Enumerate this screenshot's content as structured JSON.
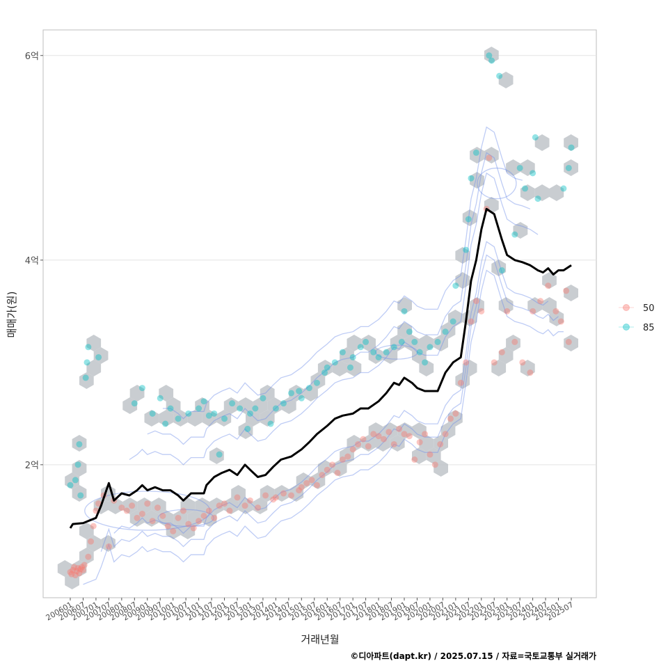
{
  "chart_data": {
    "type": "scatter",
    "title": "",
    "xlabel": "거래년월",
    "ylabel": "매매가(원)",
    "caption": "©디아파트(dapt.kr) / 2025.07.15 / 자료=국토교통부 실거래가",
    "y_unit": "억",
    "ylim": [
      0.7,
      6.25
    ],
    "y_ticks": [
      2,
      4,
      6
    ],
    "y_tick_labels": [
      "2억",
      "4억",
      "6억"
    ],
    "x_ticks": [
      "200601",
      "200607",
      "200701",
      "200707",
      "200801",
      "200807",
      "200901",
      "200907",
      "201001",
      "201007",
      "201101",
      "201107",
      "201201",
      "201207",
      "201301",
      "201307",
      "201401",
      "201407",
      "201501",
      "201507",
      "201601",
      "201607",
      "201701",
      "201707",
      "201801",
      "201807",
      "201901",
      "201907",
      "202001",
      "202007",
      "202101",
      "202107",
      "202201",
      "202207",
      "202301",
      "202307",
      "202401",
      "202407",
      "202501",
      "202507"
    ],
    "grid": true,
    "legend": {
      "position": "right",
      "entries": [
        {
          "name": "50",
          "color": "#F8766D"
        },
        {
          "name": "85",
          "color": "#00BFC4"
        }
      ]
    },
    "layers": [
      "hexbin density (grey)",
      "2D density contours (blue)",
      "points by area group",
      "moving average line (black)"
    ],
    "series": [
      {
        "name": "50",
        "color": "#F8766D",
        "points": [
          [
            2006.0,
            0.95
          ],
          [
            2006.05,
            0.93
          ],
          [
            2006.1,
            0.97
          ],
          [
            2006.15,
            1.0
          ],
          [
            2006.2,
            0.92
          ],
          [
            2006.25,
            0.96
          ],
          [
            2006.3,
            0.99
          ],
          [
            2006.35,
            0.94
          ],
          [
            2006.4,
            0.98
          ],
          [
            2006.45,
            1.0
          ],
          [
            2006.5,
            0.97
          ],
          [
            2006.55,
            1.02
          ],
          [
            2006.7,
            1.1
          ],
          [
            2006.8,
            1.25
          ],
          [
            2006.9,
            1.4
          ],
          [
            2007.0,
            1.55
          ],
          [
            2007.1,
            1.62
          ],
          [
            2007.3,
            1.7
          ],
          [
            2007.5,
            1.2
          ],
          [
            2007.7,
            1.65
          ],
          [
            2008.0,
            1.58
          ],
          [
            2008.2,
            1.55
          ],
          [
            2008.4,
            1.6
          ],
          [
            2008.6,
            1.48
          ],
          [
            2008.8,
            1.52
          ],
          [
            2009.0,
            1.62
          ],
          [
            2009.2,
            1.45
          ],
          [
            2009.4,
            1.58
          ],
          [
            2009.6,
            1.5
          ],
          [
            2009.8,
            1.4
          ],
          [
            2010.0,
            1.35
          ],
          [
            2010.2,
            1.48
          ],
          [
            2010.4,
            1.55
          ],
          [
            2010.6,
            1.42
          ],
          [
            2010.8,
            1.38
          ],
          [
            2011.0,
            1.45
          ],
          [
            2011.2,
            1.5
          ],
          [
            2011.4,
            1.55
          ],
          [
            2011.6,
            1.48
          ],
          [
            2011.8,
            1.6
          ],
          [
            2012.0,
            1.62
          ],
          [
            2012.2,
            1.55
          ],
          [
            2012.5,
            1.68
          ],
          [
            2012.8,
            1.6
          ],
          [
            2013.0,
            1.65
          ],
          [
            2013.3,
            1.58
          ],
          [
            2013.6,
            1.7
          ],
          [
            2013.9,
            1.66
          ],
          [
            2014.0,
            1.68
          ],
          [
            2014.3,
            1.72
          ],
          [
            2014.6,
            1.7
          ],
          [
            2014.9,
            1.75
          ],
          [
            2015.0,
            1.78
          ],
          [
            2015.2,
            1.82
          ],
          [
            2015.4,
            1.85
          ],
          [
            2015.6,
            1.8
          ],
          [
            2015.8,
            1.9
          ],
          [
            2016.0,
            1.95
          ],
          [
            2016.2,
            2.0
          ],
          [
            2016.4,
            1.92
          ],
          [
            2016.6,
            2.05
          ],
          [
            2016.8,
            2.08
          ],
          [
            2017.0,
            2.15
          ],
          [
            2017.2,
            2.2
          ],
          [
            2017.4,
            2.25
          ],
          [
            2017.6,
            2.18
          ],
          [
            2017.8,
            2.3
          ],
          [
            2018.0,
            2.28
          ],
          [
            2018.2,
            2.25
          ],
          [
            2018.4,
            2.32
          ],
          [
            2018.6,
            2.2
          ],
          [
            2018.8,
            2.35
          ],
          [
            2019.0,
            2.3
          ],
          [
            2019.2,
            2.28
          ],
          [
            2019.4,
            2.05
          ],
          [
            2019.6,
            2.22
          ],
          [
            2019.8,
            2.3
          ],
          [
            2020.0,
            2.1
          ],
          [
            2020.2,
            2.0
          ],
          [
            2020.4,
            2.2
          ],
          [
            2020.6,
            2.3
          ],
          [
            2020.8,
            2.45
          ],
          [
            2021.0,
            2.5
          ],
          [
            2021.2,
            2.8
          ],
          [
            2021.4,
            3.0
          ],
          [
            2021.6,
            3.4
          ],
          [
            2021.8,
            3.6
          ],
          [
            2022.0,
            3.5
          ],
          [
            2022.2,
            4.5
          ],
          [
            2022.3,
            5.0
          ],
          [
            2022.5,
            3.0
          ],
          [
            2022.8,
            3.1
          ],
          [
            2023.0,
            3.5
          ],
          [
            2023.3,
            3.2
          ],
          [
            2023.6,
            3.0
          ],
          [
            2023.9,
            2.9
          ],
          [
            2024.0,
            3.5
          ],
          [
            2024.3,
            3.6
          ],
          [
            2024.6,
            3.75
          ],
          [
            2024.9,
            3.5
          ],
          [
            2025.1,
            3.4
          ],
          [
            2025.3,
            3.7
          ],
          [
            2025.4,
            3.2
          ]
        ]
      },
      {
        "name": "85",
        "color": "#00BFC4",
        "points": [
          [
            2006.0,
            1.8
          ],
          [
            2006.2,
            1.85
          ],
          [
            2006.3,
            2.0
          ],
          [
            2006.35,
            2.2
          ],
          [
            2006.4,
            1.7
          ],
          [
            2006.6,
            2.85
          ],
          [
            2006.65,
            3.0
          ],
          [
            2006.7,
            3.15
          ],
          [
            2007.1,
            3.05
          ],
          [
            2008.5,
            2.6
          ],
          [
            2008.8,
            2.75
          ],
          [
            2009.2,
            2.5
          ],
          [
            2009.5,
            2.65
          ],
          [
            2009.7,
            2.4
          ],
          [
            2009.9,
            2.55
          ],
          [
            2010.2,
            2.45
          ],
          [
            2010.6,
            2.5
          ],
          [
            2011.0,
            2.55
          ],
          [
            2011.2,
            2.62
          ],
          [
            2011.4,
            2.48
          ],
          [
            2011.6,
            2.5
          ],
          [
            2011.8,
            2.1
          ],
          [
            2012.0,
            2.45
          ],
          [
            2012.3,
            2.6
          ],
          [
            2012.6,
            2.55
          ],
          [
            2012.9,
            2.35
          ],
          [
            2013.0,
            2.5
          ],
          [
            2013.2,
            2.55
          ],
          [
            2013.5,
            2.65
          ],
          [
            2013.8,
            2.4
          ],
          [
            2014.0,
            2.55
          ],
          [
            2014.3,
            2.6
          ],
          [
            2014.6,
            2.7
          ],
          [
            2014.9,
            2.72
          ],
          [
            2015.0,
            2.65
          ],
          [
            2015.3,
            2.75
          ],
          [
            2015.6,
            2.8
          ],
          [
            2015.9,
            2.9
          ],
          [
            2016.0,
            2.95
          ],
          [
            2016.3,
            3.0
          ],
          [
            2016.6,
            3.1
          ],
          [
            2016.9,
            2.95
          ],
          [
            2017.0,
            3.05
          ],
          [
            2017.3,
            3.15
          ],
          [
            2017.5,
            3.2
          ],
          [
            2017.8,
            3.1
          ],
          [
            2018.0,
            3.05
          ],
          [
            2018.3,
            3.1
          ],
          [
            2018.6,
            3.15
          ],
          [
            2018.9,
            3.2
          ],
          [
            2019.0,
            3.5
          ],
          [
            2019.2,
            3.3
          ],
          [
            2019.4,
            3.2
          ],
          [
            2019.6,
            3.1
          ],
          [
            2019.8,
            3.0
          ],
          [
            2020.0,
            3.15
          ],
          [
            2020.3,
            3.2
          ],
          [
            2020.6,
            3.3
          ],
          [
            2020.9,
            3.4
          ],
          [
            2021.0,
            3.75
          ],
          [
            2021.4,
            4.1
          ],
          [
            2021.5,
            4.4
          ],
          [
            2021.6,
            4.8
          ],
          [
            2021.8,
            5.05
          ],
          [
            2022.3,
            6.0
          ],
          [
            2022.4,
            5.95
          ],
          [
            2022.7,
            5.8
          ],
          [
            2022.8,
            3.9
          ],
          [
            2023.3,
            4.25
          ],
          [
            2023.5,
            4.9
          ],
          [
            2023.7,
            4.7
          ],
          [
            2024.0,
            4.85
          ],
          [
            2024.1,
            5.2
          ],
          [
            2024.2,
            4.6
          ],
          [
            2025.2,
            4.7
          ],
          [
            2025.4,
            4.9
          ],
          [
            2025.5,
            5.1
          ]
        ]
      },
      {
        "name": "moving average",
        "color": "#000000",
        "points": [
          [
            2006.0,
            1.38
          ],
          [
            2006.1,
            1.42
          ],
          [
            2006.5,
            1.43
          ],
          [
            2006.7,
            1.45
          ],
          [
            2007.0,
            1.48
          ],
          [
            2007.2,
            1.6
          ],
          [
            2007.5,
            1.82
          ],
          [
            2007.7,
            1.65
          ],
          [
            2008.0,
            1.72
          ],
          [
            2008.3,
            1.7
          ],
          [
            2008.6,
            1.75
          ],
          [
            2008.8,
            1.8
          ],
          [
            2009.0,
            1.75
          ],
          [
            2009.3,
            1.78
          ],
          [
            2009.6,
            1.75
          ],
          [
            2009.9,
            1.75
          ],
          [
            2010.2,
            1.7
          ],
          [
            2010.4,
            1.65
          ],
          [
            2010.7,
            1.72
          ],
          [
            2011.0,
            1.72
          ],
          [
            2011.2,
            1.72
          ],
          [
            2011.3,
            1.8
          ],
          [
            2011.6,
            1.88
          ],
          [
            2011.9,
            1.92
          ],
          [
            2012.2,
            1.95
          ],
          [
            2012.5,
            1.9
          ],
          [
            2012.8,
            2.0
          ],
          [
            2013.0,
            1.95
          ],
          [
            2013.3,
            1.88
          ],
          [
            2013.6,
            1.9
          ],
          [
            2013.9,
            1.98
          ],
          [
            2014.2,
            2.05
          ],
          [
            2014.6,
            2.08
          ],
          [
            2015.0,
            2.15
          ],
          [
            2015.3,
            2.22
          ],
          [
            2015.6,
            2.3
          ],
          [
            2016.0,
            2.38
          ],
          [
            2016.3,
            2.45
          ],
          [
            2016.6,
            2.48
          ],
          [
            2017.0,
            2.5
          ],
          [
            2017.3,
            2.55
          ],
          [
            2017.6,
            2.55
          ],
          [
            2018.0,
            2.62
          ],
          [
            2018.3,
            2.7
          ],
          [
            2018.6,
            2.8
          ],
          [
            2018.8,
            2.78
          ],
          [
            2019.0,
            2.85
          ],
          [
            2019.3,
            2.8
          ],
          [
            2019.5,
            2.75
          ],
          [
            2019.8,
            2.72
          ],
          [
            2020.0,
            2.72
          ],
          [
            2020.3,
            2.72
          ],
          [
            2020.6,
            2.9
          ],
          [
            2020.9,
            3.0
          ],
          [
            2021.2,
            3.05
          ],
          [
            2021.4,
            3.4
          ],
          [
            2021.6,
            3.8
          ],
          [
            2021.8,
            4.0
          ],
          [
            2022.0,
            4.3
          ],
          [
            2022.2,
            4.5
          ],
          [
            2022.5,
            4.45
          ],
          [
            2022.8,
            4.2
          ],
          [
            2023.0,
            4.05
          ],
          [
            2023.3,
            4.0
          ],
          [
            2023.6,
            3.98
          ],
          [
            2023.9,
            3.95
          ],
          [
            2024.2,
            3.9
          ],
          [
            2024.4,
            3.88
          ],
          [
            2024.6,
            3.92
          ],
          [
            2024.8,
            3.86
          ],
          [
            2025.0,
            3.9
          ],
          [
            2025.2,
            3.9
          ],
          [
            2025.5,
            3.95
          ]
        ]
      }
    ]
  }
}
